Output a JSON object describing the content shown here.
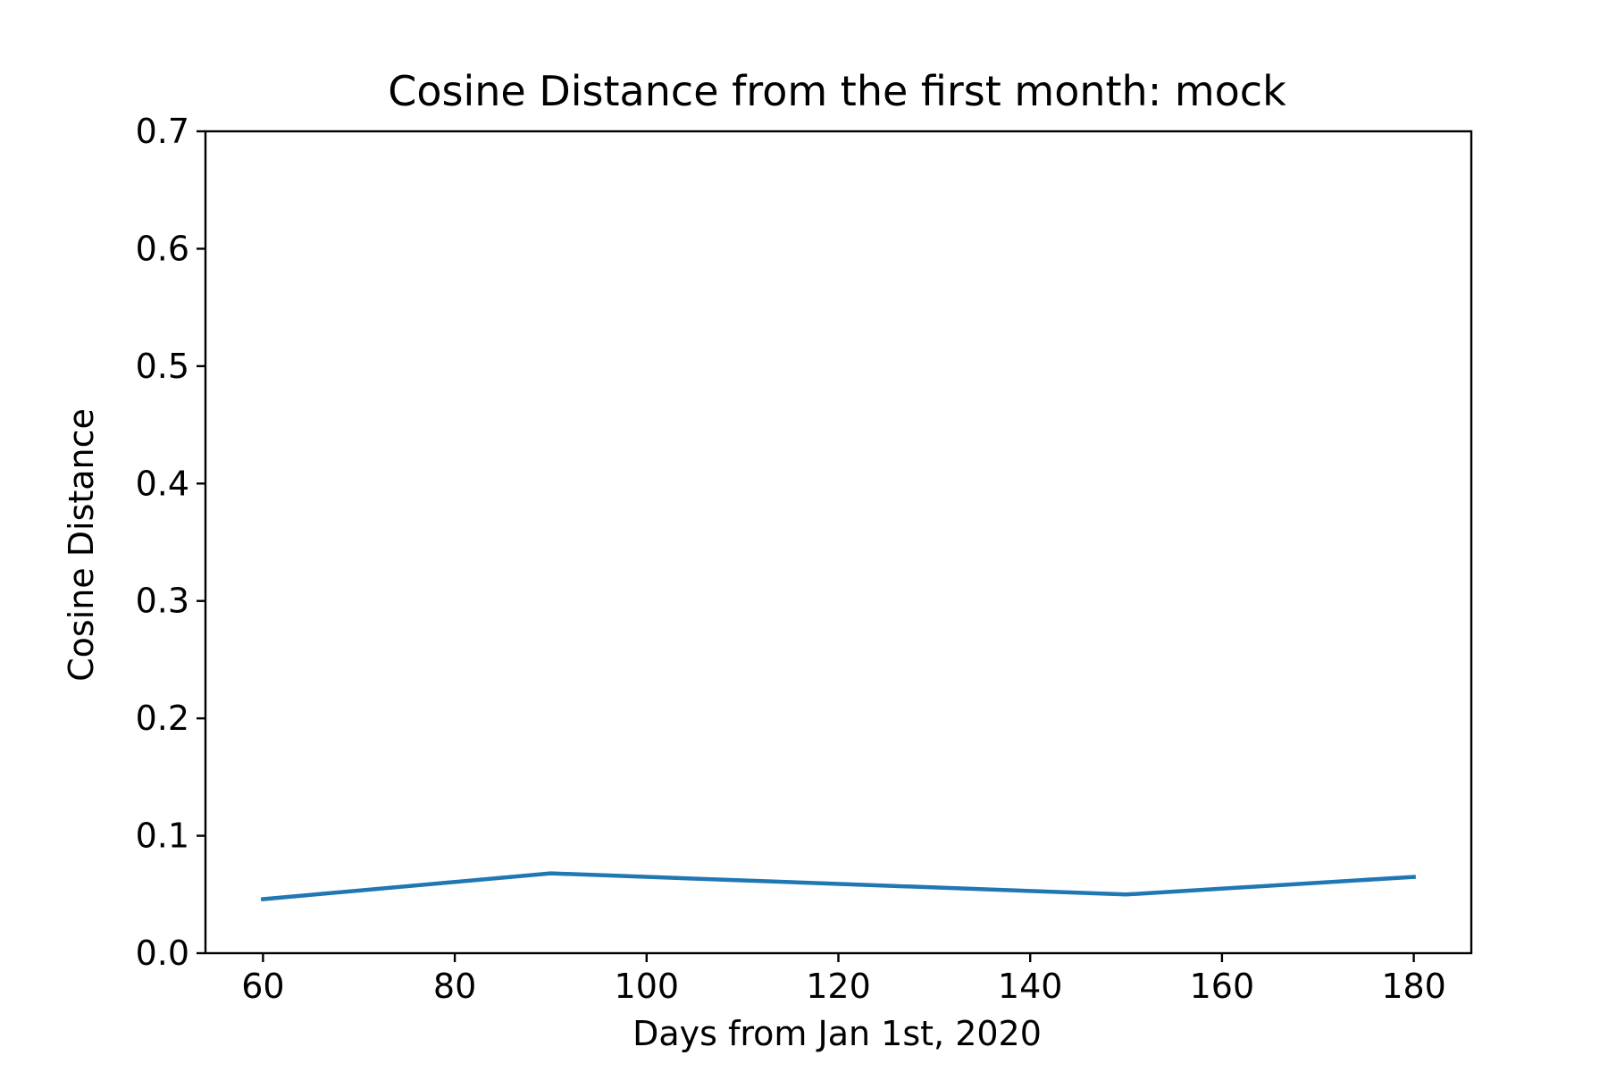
{
  "chart_data": {
    "type": "line",
    "title": "Cosine Distance from the first month: mock",
    "xlabel": "Days from Jan 1st, 2020",
    "ylabel": "Cosine Distance",
    "xlim": [
      54,
      186
    ],
    "ylim": [
      0.0,
      0.7
    ],
    "x_ticks": [
      60,
      80,
      100,
      120,
      140,
      160,
      180
    ],
    "x_tick_labels": [
      "60",
      "80",
      "100",
      "120",
      "140",
      "160",
      "180"
    ],
    "y_ticks": [
      0.0,
      0.1,
      0.2,
      0.3,
      0.4,
      0.5,
      0.6,
      0.7
    ],
    "y_tick_labels": [
      "0.0",
      "0.1",
      "0.2",
      "0.3",
      "0.4",
      "0.5",
      "0.6",
      "0.7"
    ],
    "grid": false,
    "series": [
      {
        "x": [
          60,
          90,
          150,
          180
        ],
        "y": [
          0.046,
          0.068,
          0.05,
          0.065
        ],
        "color": "#1f77b4"
      }
    ]
  }
}
